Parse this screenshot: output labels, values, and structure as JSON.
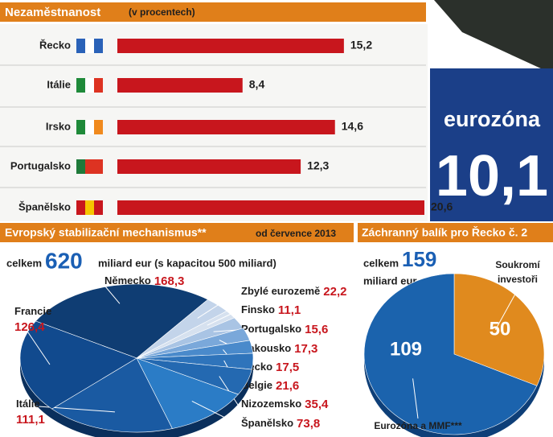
{
  "chart_data": [
    {
      "type": "bar",
      "title": "Nezaměstnanost",
      "subtitle": "(v procentech)",
      "categories": [
        "Řecko",
        "Itálie",
        "Irsko",
        "Portugalsko",
        "Španělsko"
      ],
      "values": [
        15.2,
        8.4,
        14.6,
        12.3,
        20.6
      ],
      "value_labels": [
        "15,2",
        "8,4",
        "14,6",
        "12,3",
        "20,6"
      ],
      "color": "#c8161d",
      "highlight": {
        "label": "eurozóna",
        "value": 10.1,
        "value_label": "10,1"
      }
    },
    {
      "type": "pie",
      "title": "Evropský stabilizační mechanismus**",
      "subtitle": "od července 2013",
      "total_prefix": "celkem",
      "total": 620,
      "total_unit": "miliard eur  (s kapacitou 500 miliard)",
      "categories": [
        "Německo",
        "Zbylé eurozemě",
        "Finsko",
        "Portugalsko",
        "Rakousko",
        "Řecko",
        "Belgie",
        "Nizozemsko",
        "Španělsko",
        "Itálie",
        "Francie"
      ],
      "values": [
        168.3,
        22.2,
        11.1,
        15.6,
        17.3,
        17.5,
        21.6,
        35.4,
        73.8,
        111.1,
        126.4
      ],
      "value_labels": [
        "168,3",
        "22,2",
        "11,1",
        "15,6",
        "17,3",
        "17,5",
        "21,6",
        "35,4",
        "73,8",
        "111,1",
        "126,4"
      ],
      "colors": [
        "#0f3d73",
        "#c3d4ea",
        "#d6e1ef",
        "#a9c4e4",
        "#7aa8da",
        "#4a8acb",
        "#2f74bb",
        "#2469b1",
        "#2b7cc6",
        "#1a5aa2",
        "#114a8e"
      ]
    },
    {
      "type": "pie",
      "title": "Záchranný balík pro Řecko č. 2",
      "total_prefix": "celkem",
      "total": 159,
      "total_unit": "miliard eur",
      "categories": [
        "Soukromí investoři",
        "Eurozóna a MMF***"
      ],
      "values": [
        50,
        109
      ],
      "colors": [
        "#e08a1e",
        "#1b63ad"
      ]
    }
  ]
}
